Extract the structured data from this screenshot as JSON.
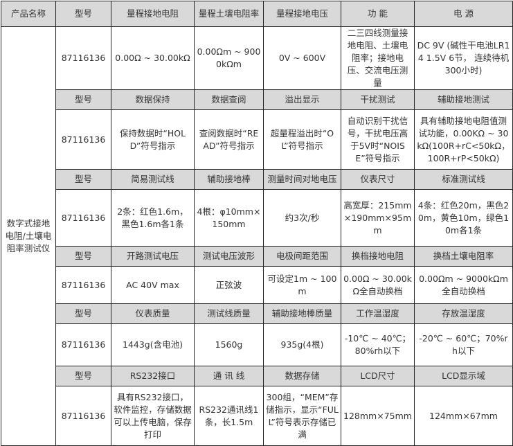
{
  "product_header": "产品名称",
  "product_name": "数字式接地电阻/土壤电阻率测试仪",
  "header_color": "#d9d9d9",
  "groups": [
    {
      "labels": [
        "型号",
        "量程接地电阻",
        "量程土壤电阻率",
        "量程接地电压",
        "功  能",
        "电  源"
      ],
      "values": [
        "87116136",
        "0.00Ω ~ 30.00kΩ",
        "0.00Ωm ~ 9000kΩm",
        "0V ~ 600V",
        "二三四线测量接地电阻、土壤电阻率；接地电压、交流电压测量",
        "DC 9V (碱性干电池LR14 1.5V 6节， 连续待机300小时)"
      ]
    },
    {
      "labels": [
        "型号",
        "数据保持",
        "数据查阅",
        "溢出显示",
        "干扰测试",
        "辅助接地测试"
      ],
      "values": [
        "87116136",
        "保持数据时“HOLD”符号指示",
        "查阅数据时“READ”符号指示",
        "超量程溢出时“OL”符号指示",
        "自动识别干扰信号，干扰电压高于5V时“NOISE”符号指示",
        "具有辅助接地电阻值测试功能，0.00KΩ ~ 30kΩ(100R+rC<50kΩ，100R+rP<50kΩ)"
      ]
    },
    {
      "labels": [
        "型号",
        "简易测试线",
        "辅助接地棒",
        "测量时间对地电压",
        "仪表尺寸",
        "标准测试线"
      ],
      "values": [
        "87116136",
        "2条：红色1.6m，黑色1.6m各1条",
        "4根：φ10mm×150mm",
        "约3次/秒",
        "高宽厚：215mm×190mm×95mm",
        "4条：红色20m，黑色20m，黄色10m，绿色10m各1条"
      ]
    },
    {
      "labels": [
        "型号",
        "开路测试电压",
        "测试电压波形",
        "电极间距范围",
        "换档接地电阻",
        "换档土壤电阻率"
      ],
      "values": [
        "87116136",
        "AC 40V max",
        "正弦波",
        "可设定1m ~ 100m",
        "0.00Ω ~ 30.00kΩ全自动换档",
        "0.00Ωm ~ 9000kΩm全自动换档"
      ]
    },
    {
      "labels": [
        "型号",
        "仪表质量",
        "测试线质量",
        "辅助接地棒质量",
        "工作温湿度",
        "存放温湿度"
      ],
      "values": [
        "87116136",
        "1443g(含电池)",
        "1560g",
        "935g(4根)",
        "-10℃ ~ 40℃；80%rh以下",
        "-20℃ ~ 60℃；70%rh以下"
      ]
    },
    {
      "labels": [
        "型号",
        "RS232接口",
        "通 讯 线",
        "数据存储",
        "LCD尺寸",
        "LCD显示域"
      ],
      "values": [
        "87116136",
        "具有RS232接口，软件监控，存储数据可以上传电脑，保存打印",
        "RS232通讯线1条，长1.5m",
        "300组，“MEM”存储指示，显示“FULL”符号表示存储已满",
        "128mm×75mm",
        "124mm×67mm"
      ]
    }
  ]
}
